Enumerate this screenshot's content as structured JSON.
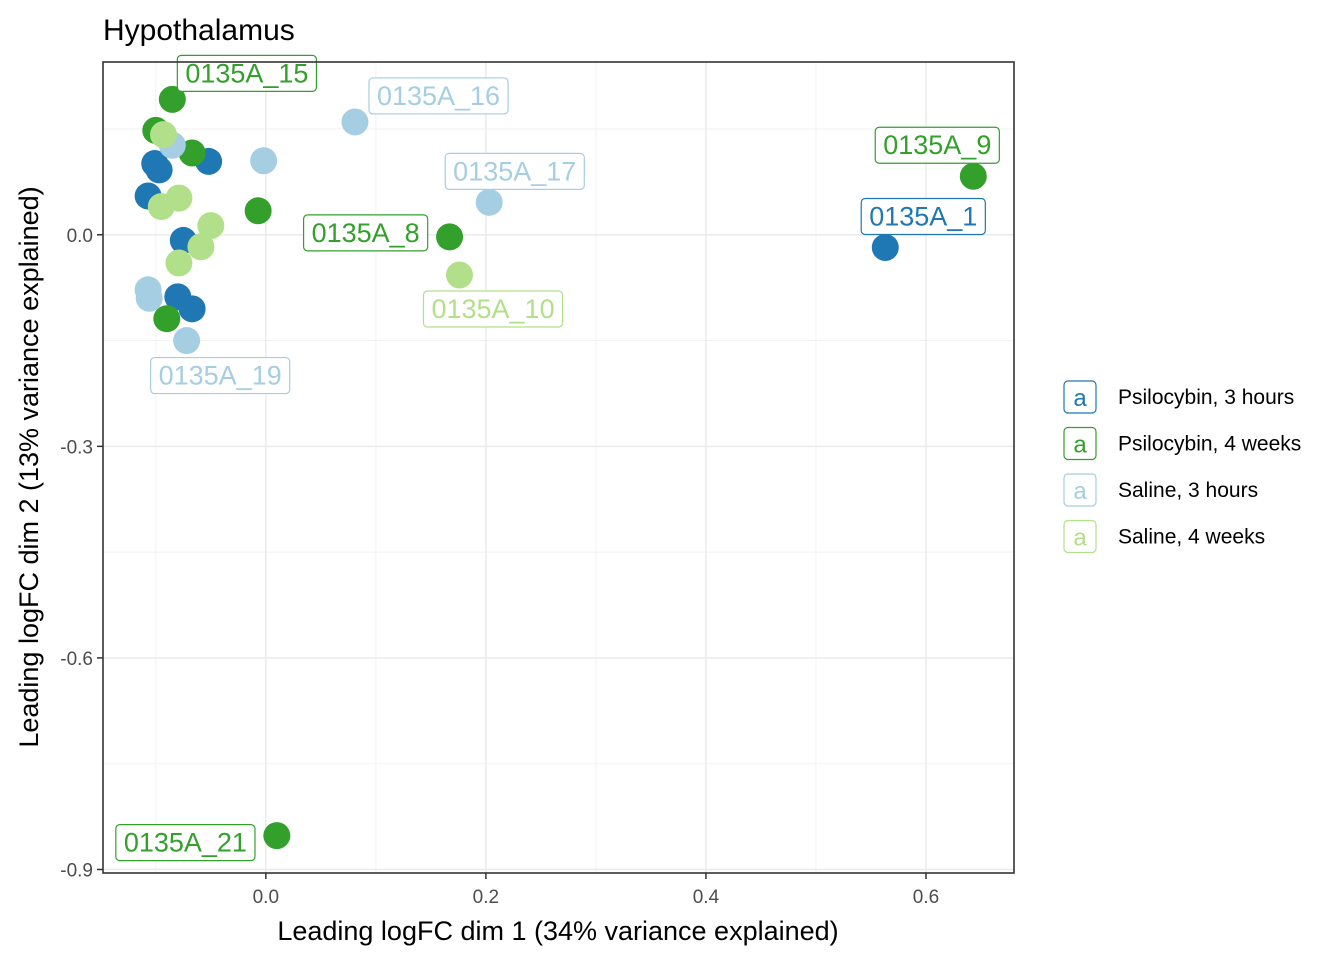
{
  "chart_data": {
    "type": "scatter",
    "title": "Hypothalamus",
    "xlabel": "Leading logFC dim 1 (34% variance explained)",
    "ylabel": "Leading logFC dim 2 (13% variance explained)",
    "xlim": [
      -0.148,
      0.68
    ],
    "ylim": [
      -0.905,
      0.245
    ],
    "xticks": [
      0.0,
      0.2,
      0.4,
      0.6
    ],
    "xtick_labels": [
      "0.0",
      "0.2",
      "0.4",
      "0.6"
    ],
    "yticks": [
      0.0,
      -0.3,
      -0.6,
      -0.9
    ],
    "ytick_labels": [
      "0.0",
      "-0.3",
      "-0.6",
      "-0.9"
    ],
    "grid": true,
    "legend_position": "right",
    "legend_key_glyph": "a",
    "series": [
      {
        "name": "Psilocybin, 3 hours",
        "color": "#1f78b4",
        "points": [
          {
            "x": 0.563,
            "y": -0.018,
            "label": "0135A_1"
          },
          {
            "x": -0.101,
            "y": 0.101
          },
          {
            "x": -0.097,
            "y": 0.092
          },
          {
            "x": -0.107,
            "y": 0.055
          },
          {
            "x": -0.052,
            "y": 0.104
          },
          {
            "x": -0.075,
            "y": -0.008
          },
          {
            "x": -0.08,
            "y": -0.088
          },
          {
            "x": -0.067,
            "y": -0.105
          }
        ]
      },
      {
        "name": "Psilocybin, 4 weeks",
        "color": "#33a02c",
        "points": [
          {
            "x": 0.643,
            "y": 0.083,
            "label": "0135A_9"
          },
          {
            "x": -0.085,
            "y": 0.192,
            "label": "0135A_15"
          },
          {
            "x": 0.167,
            "y": -0.003,
            "label": "0135A_8"
          },
          {
            "x": 0.01,
            "y": -0.852,
            "label": "0135A_21"
          },
          {
            "x": -0.1,
            "y": 0.148
          },
          {
            "x": -0.067,
            "y": 0.116
          },
          {
            "x": -0.007,
            "y": 0.034
          },
          {
            "x": -0.09,
            "y": -0.119
          }
        ]
      },
      {
        "name": "Saline, 3 hours",
        "color": "#a6cee3",
        "points": [
          {
            "x": 0.081,
            "y": 0.16,
            "label": "0135A_16"
          },
          {
            "x": 0.203,
            "y": 0.046,
            "label": "0135A_17"
          },
          {
            "x": -0.072,
            "y": -0.15,
            "label": "0135A_19"
          },
          {
            "x": -0.002,
            "y": 0.105
          },
          {
            "x": -0.085,
            "y": 0.127
          },
          {
            "x": -0.107,
            "y": -0.078
          },
          {
            "x": -0.106,
            "y": -0.09
          }
        ]
      },
      {
        "name": "Saline, 4 weeks",
        "color": "#b2df8a",
        "points": [
          {
            "x": 0.176,
            "y": -0.057,
            "label": "0135A_10"
          },
          {
            "x": -0.093,
            "y": 0.142
          },
          {
            "x": -0.079,
            "y": 0.052
          },
          {
            "x": -0.095,
            "y": 0.04
          },
          {
            "x": -0.05,
            "y": 0.013
          },
          {
            "x": -0.059,
            "y": -0.017
          },
          {
            "x": -0.079,
            "y": -0.04
          }
        ]
      }
    ]
  }
}
